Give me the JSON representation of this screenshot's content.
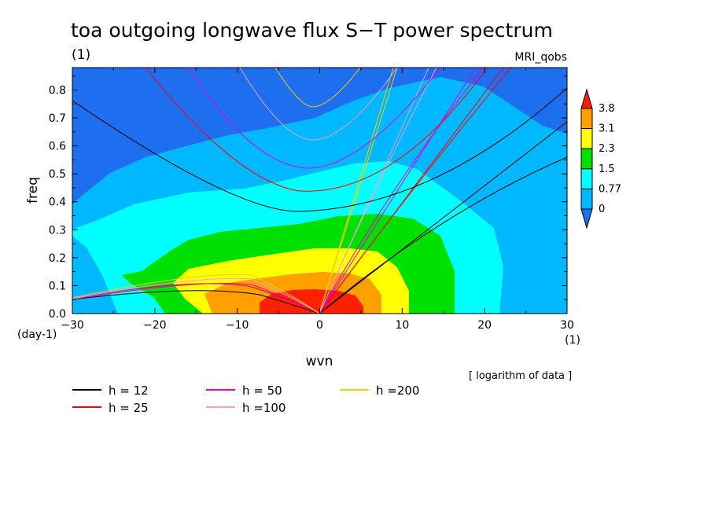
{
  "chart_data": {
    "type": "heatmap",
    "title": "toa outgoing longwave flux S−T power spectrum",
    "subtitle": "(1)",
    "model_label": "MRI_qobs",
    "xlabel": "wvn",
    "ylabel": "freq",
    "x_unit": "(1)",
    "y_unit": "(day-1)",
    "xlim": [
      -30,
      30
    ],
    "ylim": [
      0,
      0.88
    ],
    "x_ticks": [
      -30,
      -20,
      -10,
      0,
      10,
      20,
      30
    ],
    "x_tick_labels": [
      "−30",
      "−20",
      "−10",
      "0",
      "10",
      "20",
      "30"
    ],
    "y_ticks": [
      0.0,
      0.1,
      0.2,
      0.3,
      0.4,
      0.5,
      0.6,
      0.7,
      0.8
    ],
    "y_tick_labels": [
      "0.0",
      "0.1",
      "0.2",
      "0.3",
      "0.4",
      "0.5",
      "0.6",
      "0.7",
      "0.8"
    ],
    "colorbar": {
      "levels": [
        "3.8",
        "3.1",
        "2.3",
        "1.5",
        "0.77",
        "0"
      ],
      "colors": [
        "#ff2000",
        "#ffa000",
        "#ffff00",
        "#00e000",
        "#00ffff",
        "#00b8ff",
        "#1e6ef0"
      ],
      "note": "[ logarithm of data ]"
    },
    "dispersion_curves": {
      "equivalent_depths": [
        12,
        25,
        50,
        100,
        200
      ],
      "legend": [
        {
          "label": "h = 12",
          "color": "#000000"
        },
        {
          "label": "h = 25",
          "color": "#ff0000"
        },
        {
          "label": "h = 50",
          "color": "#e000e0"
        },
        {
          "label": "h =100",
          "color": "#e8a0e0"
        },
        {
          "label": "h =200",
          "color": "#f0d000"
        }
      ]
    }
  }
}
